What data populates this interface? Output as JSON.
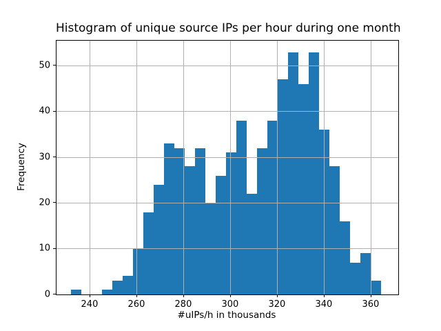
{
  "chart_data": {
    "type": "bar",
    "subtype": "histogram",
    "title": "Histogram of unique source IPs per hour during one month",
    "xlabel": "#uIPs/h in thousands",
    "ylabel": "Frequency",
    "bin_start": 231.7,
    "bin_width": 4.4167,
    "counts": [
      1,
      0,
      0,
      1,
      3,
      4,
      10,
      18,
      24,
      33,
      32,
      28,
      32,
      20,
      26,
      31,
      38,
      22,
      32,
      38,
      47,
      53,
      46,
      53,
      36,
      28,
      16,
      7,
      9,
      3
    ],
    "x_ticks": [
      240,
      260,
      280,
      300,
      320,
      340,
      360
    ],
    "y_ticks": [
      0,
      10,
      20,
      30,
      40,
      50
    ],
    "xlim": [
      225.6,
      371.5
    ],
    "ylim": [
      0,
      55.5
    ],
    "grid": true,
    "grid_on_top": true,
    "legend_position": "none",
    "colors": {
      "bar": "#1f77b4",
      "grid": "#b0b0b0",
      "axis": "#000000",
      "background": "#ffffff",
      "text": "#000000"
    }
  }
}
